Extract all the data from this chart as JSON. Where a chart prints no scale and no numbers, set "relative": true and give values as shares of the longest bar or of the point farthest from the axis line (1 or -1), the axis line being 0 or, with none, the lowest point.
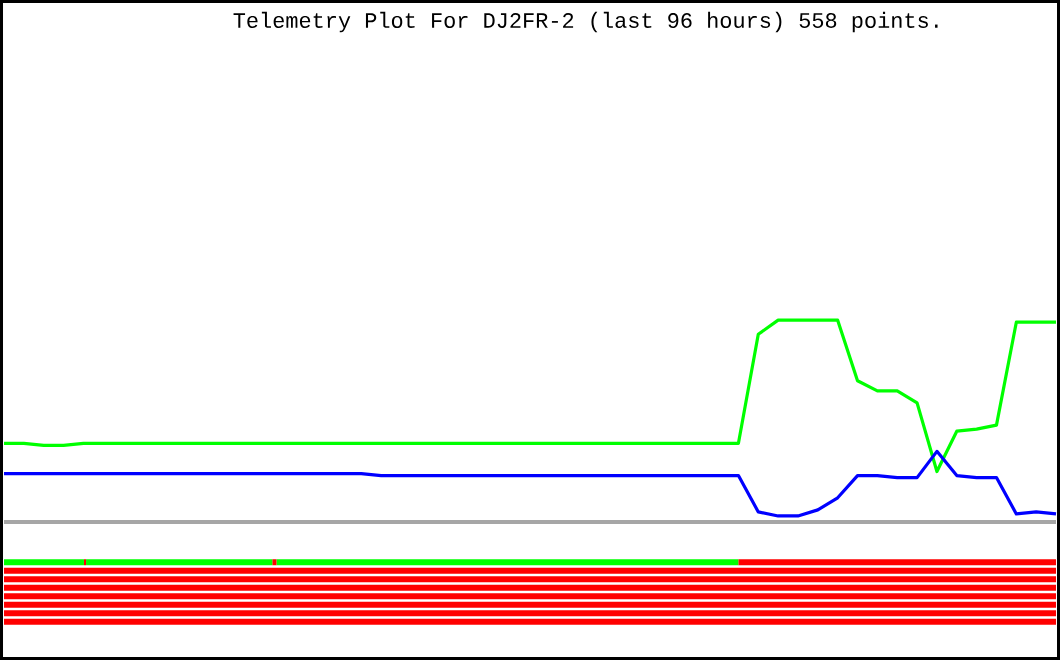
{
  "chart_data": [
    {
      "type": "line",
      "title": "Telemetry Plot For DJ2FR-2 (last 96 hours) 558 points.",
      "relative": true,
      "categories": [
        null,
        null,
        null,
        null,
        null,
        null,
        null,
        null,
        null,
        null,
        null,
        null,
        null,
        null,
        null,
        null,
        null,
        null,
        null,
        null,
        null,
        null,
        null,
        null,
        null,
        null,
        null,
        null,
        null,
        null,
        null,
        null,
        null,
        null,
        null,
        null,
        null,
        null,
        null,
        null,
        null,
        null,
        null,
        null,
        null,
        null,
        null,
        null,
        null,
        null,
        null,
        null,
        null,
        null
      ],
      "series": [
        {
          "color": "#00ff00",
          "values": [
            0.39,
            0.39,
            0.38,
            0.38,
            0.39,
            0.39,
            0.39,
            0.39,
            0.39,
            0.39,
            0.39,
            0.39,
            0.39,
            0.39,
            0.39,
            0.39,
            0.39,
            0.39,
            0.39,
            0.39,
            0.39,
            0.39,
            0.39,
            0.39,
            0.39,
            0.39,
            0.39,
            0.39,
            0.39,
            0.39,
            0.39,
            0.39,
            0.39,
            0.39,
            0.39,
            0.39,
            0.39,
            0.39,
            0.93,
            1.0,
            1.0,
            1.0,
            1.0,
            0.7,
            0.65,
            0.65,
            0.59,
            0.25,
            0.45,
            0.46,
            0.48,
            0.99,
            0.99,
            0.99
          ]
        },
        {
          "color": "#0000ff",
          "values": [
            0.24,
            0.24,
            0.24,
            0.24,
            0.24,
            0.24,
            0.24,
            0.24,
            0.24,
            0.24,
            0.24,
            0.24,
            0.24,
            0.24,
            0.24,
            0.24,
            0.24,
            0.24,
            0.24,
            0.23,
            0.23,
            0.23,
            0.23,
            0.23,
            0.23,
            0.23,
            0.23,
            0.23,
            0.23,
            0.23,
            0.23,
            0.23,
            0.23,
            0.23,
            0.23,
            0.23,
            0.23,
            0.23,
            0.05,
            0.03,
            0.03,
            0.06,
            0.12,
            0.23,
            0.23,
            0.22,
            0.22,
            0.35,
            0.23,
            0.22,
            0.22,
            0.04,
            0.05,
            0.04
          ]
        }
      ]
    },
    {
      "type": "bar",
      "orientation": "horizontal",
      "stacked": true,
      "relative": true,
      "categories": [
        null,
        null,
        null,
        null,
        null,
        null,
        null,
        null
      ],
      "series": [
        {
          "color": "#00ff00",
          "values": [
            0.076,
            0,
            0,
            0,
            0,
            0,
            0,
            0
          ]
        },
        {
          "color": "#ff0000",
          "values": [
            0.002,
            0,
            0,
            0,
            0,
            0,
            0,
            0
          ]
        },
        {
          "color": "#00ff00",
          "values": [
            0.177,
            0,
            0,
            0,
            0,
            0,
            0,
            0
          ]
        },
        {
          "color": "#ff0000",
          "values": [
            0.004,
            0,
            0,
            0,
            0,
            0,
            0,
            0
          ]
        },
        {
          "color": "#00ff00",
          "values": [
            0.439,
            0,
            0,
            0,
            0,
            0,
            0,
            0
          ]
        },
        {
          "color": "#ff0000",
          "values": [
            0.302,
            1,
            1,
            1,
            1,
            1,
            1,
            1
          ]
        }
      ]
    }
  ]
}
